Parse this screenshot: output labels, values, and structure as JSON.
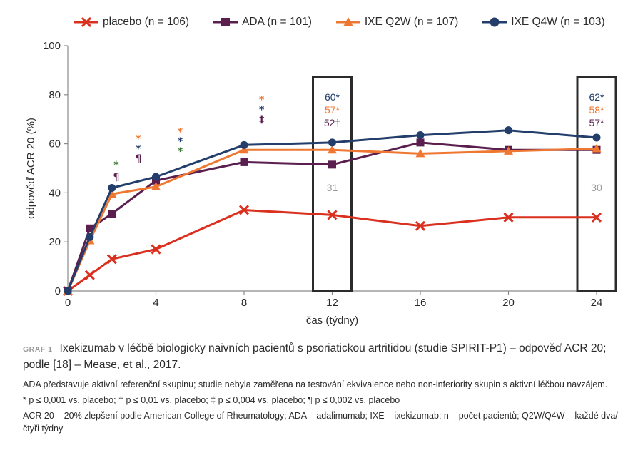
{
  "colors": {
    "placebo": "#d9301f",
    "ada": "#5a1f4f",
    "ixe_q2w": "#ee7731",
    "ixe_q4w": "#233e6b",
    "sig_green": "#3b7a32",
    "gray": "#9a9a9a"
  },
  "legend": [
    {
      "label": "placebo (n = 106)",
      "color": "#d9301f",
      "marker": "x"
    },
    {
      "label": "ADA (n = 101)",
      "color": "#5a1f4f",
      "marker": "square"
    },
    {
      "label": "IXE Q2W (n = 107)",
      "color": "#ee7731",
      "marker": "triangle"
    },
    {
      "label": "IXE Q4W (n = 103)",
      "color": "#233e6b",
      "marker": "circle"
    }
  ],
  "chart_data": {
    "type": "line",
    "xlabel": "čas (týdny)",
    "ylabel": "odpověď ACR 20 (%)",
    "xlim": [
      0,
      24
    ],
    "ylim": [
      0,
      100
    ],
    "xticks": [
      0,
      4,
      8,
      12,
      16,
      20,
      24
    ],
    "yticks": [
      0,
      20,
      40,
      60,
      80,
      100
    ],
    "series": [
      {
        "name": "placebo (n = 106)",
        "color": "#d9301f",
        "marker": "x",
        "x": [
          0,
          1,
          2,
          4,
          8,
          12,
          16,
          20,
          24
        ],
        "y": [
          0,
          6.5,
          13,
          17,
          33,
          31,
          26.5,
          30,
          30
        ]
      },
      {
        "name": "ADA (n = 101)",
        "color": "#5a1f4f",
        "marker": "square",
        "x": [
          0,
          1,
          2,
          4,
          8,
          12,
          16,
          20,
          24
        ],
        "y": [
          0,
          25.5,
          31.5,
          45,
          52.5,
          51.5,
          60.5,
          57.5,
          57.5
        ]
      },
      {
        "name": "IXE Q2W (n = 107)",
        "color": "#ee7731",
        "marker": "triangle",
        "x": [
          0,
          1,
          2,
          4,
          8,
          12,
          16,
          20,
          24
        ],
        "y": [
          0,
          20.5,
          39.5,
          42.5,
          57.5,
          57.5,
          56,
          57,
          58
        ]
      },
      {
        "name": "IXE Q4W (n = 103)",
        "color": "#233e6b",
        "marker": "circle",
        "x": [
          0,
          1,
          2,
          4,
          8,
          12,
          16,
          20,
          24
        ],
        "y": [
          0,
          22,
          42,
          46.5,
          59.5,
          60.5,
          63.5,
          65.5,
          62.5
        ]
      }
    ],
    "significance_marks": [
      {
        "x": 2.2,
        "marks": [
          {
            "y": 51.5,
            "text": "*",
            "color": "#3b7a32"
          },
          {
            "y": 46.5,
            "text": "¶",
            "color": "#5a1f4f"
          }
        ]
      },
      {
        "x": 3.2,
        "marks": [
          {
            "y": 62,
            "text": "*",
            "color": "#ee7731"
          },
          {
            "y": 58,
            "text": "*",
            "color": "#233e6b"
          },
          {
            "y": 54,
            "text": "¶",
            "color": "#5a1f4f"
          }
        ]
      },
      {
        "x": 5.1,
        "marks": [
          {
            "y": 65,
            "text": "*",
            "color": "#ee7731"
          },
          {
            "y": 61,
            "text": "*",
            "color": "#233e6b"
          },
          {
            "y": 57,
            "text": "*",
            "color": "#3b7a32"
          }
        ]
      },
      {
        "x": 8.8,
        "marks": [
          {
            "y": 78,
            "text": "*",
            "color": "#ee7731"
          },
          {
            "y": 74,
            "text": "*",
            "color": "#233e6b"
          },
          {
            "y": 70,
            "text": "‡",
            "color": "#5a1f4f"
          }
        ]
      }
    ],
    "highlight_boxes": [
      {
        "x": 12,
        "labels": [
          {
            "text": "60*",
            "color": "#233e6b"
          },
          {
            "text": "57*",
            "color": "#ee7731"
          },
          {
            "text": "52†",
            "color": "#5a1f4f"
          }
        ],
        "placebo_label": "31"
      },
      {
        "x": 24,
        "labels": [
          {
            "text": "62*",
            "color": "#233e6b"
          },
          {
            "text": "58*",
            "color": "#ee7731"
          },
          {
            "text": "57*",
            "color": "#5a1f4f"
          }
        ],
        "placebo_label": "30"
      }
    ]
  },
  "caption": {
    "graf_num": "GRAF 1",
    "title": "Ixekizumab v léčbě biologicky naivních pacientů s psoriatickou artritidou (studie SPIRIT-P1) – odpověď ACR 20; podle [18] – Mease, et al., 2017.",
    "line1": "ADA představuje aktivní referenční skupinu; studie nebyla zaměřena na testování ekvivalence nebo non-inferiority skupin s aktivní léčbou navzájem.",
    "line2": "* p ≤ 0,001 vs. placebo; † p ≤ 0,01 vs. placebo; ‡ p ≤ 0,004 vs. placebo; ¶ p ≤ 0,002 vs. placebo",
    "line3": "ACR 20 – 20% zlepšení podle American College of Rheumatology; ADA – adalimumab; IXE – ixekizumab; n – počet pacientů; Q2W/Q4W – každé dva/čtyři týdny"
  }
}
